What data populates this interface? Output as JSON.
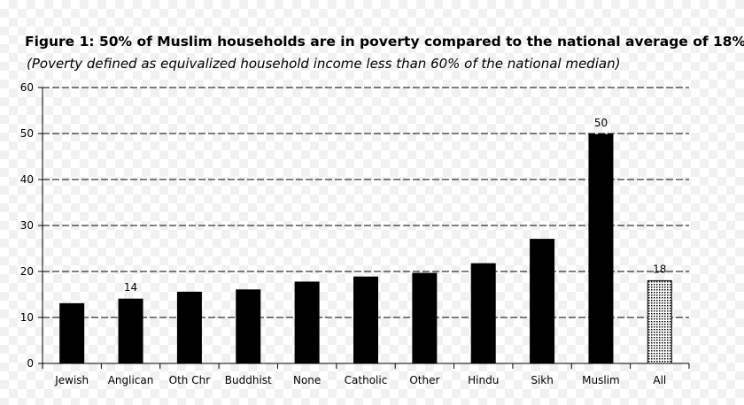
{
  "title": "Figure 1: 50% of Muslim households are in poverty compared to the national average of 18%",
  "subtitle": "(Poverty defined as equivalized household income less than 60% of the national median)",
  "colors": {
    "bar": "#000000",
    "highlight_bar_fill": "#bdbdbd",
    "gridline": "#000000"
  },
  "chart_data": {
    "type": "bar",
    "title": "Figure 1: 50% of Muslim households are in poverty compared to the national average of 18%",
    "subtitle": "(Poverty defined as equivalized household income less than 60% of the national median)",
    "categories": [
      "Jewish",
      "Anglican",
      "Oth Chr",
      "Buddhist",
      "None",
      "Catholic",
      "Other",
      "Hindu",
      "Sikh",
      "Muslim",
      "All"
    ],
    "values": [
      13,
      14,
      15.5,
      16,
      17.7,
      18.8,
      19.6,
      21.7,
      27,
      49.8,
      18
    ],
    "data_labels": [
      {
        "category": "Anglican",
        "text": "14"
      },
      {
        "category": "Muslim",
        "text": "50"
      },
      {
        "category": "All",
        "text": "18"
      }
    ],
    "highlighted_category": "All",
    "ylim": [
      0,
      60
    ],
    "yticks": [
      "0",
      "10",
      "20",
      "30",
      "40",
      "50",
      "60"
    ],
    "grid": "horizontal dashed",
    "xlabel": "",
    "ylabel": ""
  }
}
